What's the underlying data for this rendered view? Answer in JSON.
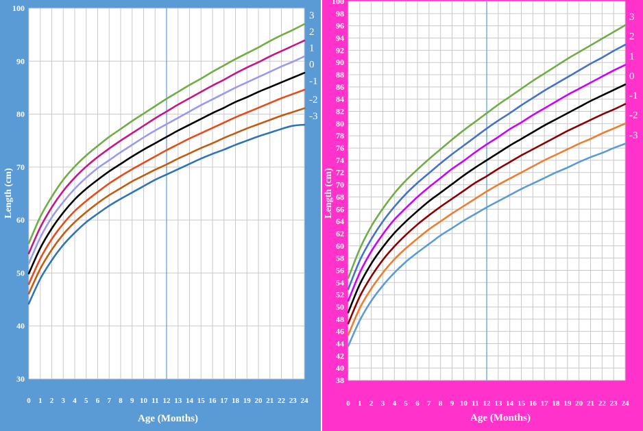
{
  "chart_data": [
    {
      "type": "line",
      "panel": "left",
      "background_color": "#5b9bd5",
      "xlabel": "Age (Months)",
      "ylabel": "Length (cm)",
      "xlim": [
        0,
        24
      ],
      "ylim": [
        30,
        100
      ],
      "x_ticks": [
        0,
        1,
        2,
        3,
        4,
        5,
        6,
        7,
        8,
        9,
        10,
        11,
        12,
        13,
        14,
        15,
        16,
        17,
        18,
        19,
        20,
        21,
        22,
        23,
        24
      ],
      "y_ticks": [
        30,
        40,
        50,
        60,
        70,
        80,
        90,
        100
      ],
      "y_tick_labels": [
        "30",
        "40",
        "50",
        "60",
        "70",
        "80",
        "90",
        "100"
      ],
      "grid": true,
      "reference_line_x": 12,
      "reference_line_color": "#5b9bd5",
      "x": [
        0,
        1,
        2,
        3,
        4,
        5,
        6,
        7,
        8,
        9,
        10,
        11,
        12,
        13,
        14,
        15,
        16,
        17,
        18,
        19,
        20,
        21,
        22,
        23,
        24
      ],
      "series": [
        {
          "name": "3",
          "color": "#70ad47",
          "values": [
            55.6,
            60.6,
            64.4,
            67.6,
            70.1,
            72.2,
            74.0,
            75.7,
            77.2,
            78.7,
            80.1,
            81.5,
            82.9,
            84.2,
            85.5,
            86.7,
            88.0,
            89.2,
            90.4,
            91.5,
            92.6,
            93.8,
            94.9,
            95.9,
            97.0
          ]
        },
        {
          "name": "2",
          "color": "#c71585",
          "values": [
            53.7,
            58.6,
            62.4,
            65.5,
            68.0,
            70.1,
            71.9,
            73.5,
            75.0,
            76.4,
            77.8,
            79.2,
            80.5,
            81.8,
            83.0,
            84.2,
            85.4,
            86.5,
            87.7,
            88.8,
            89.8,
            90.9,
            91.9,
            92.9,
            93.9
          ]
        },
        {
          "name": "1",
          "color": "#9999ee",
          "values": [
            51.8,
            56.7,
            60.5,
            63.4,
            65.9,
            68.0,
            69.8,
            71.3,
            72.8,
            74.2,
            75.6,
            76.9,
            78.1,
            79.3,
            80.5,
            81.7,
            82.8,
            83.9,
            85.0,
            86.0,
            87.0,
            88.0,
            89.0,
            89.9,
            90.9
          ]
        },
        {
          "name": "0",
          "color": "#000000",
          "values": [
            49.9,
            54.7,
            58.4,
            61.4,
            63.9,
            65.9,
            67.6,
            69.2,
            70.6,
            72.0,
            73.3,
            74.5,
            75.7,
            76.9,
            78.0,
            79.1,
            80.2,
            81.2,
            82.3,
            83.2,
            84.2,
            85.1,
            86.0,
            86.9,
            87.8
          ]
        },
        {
          "name": "-1",
          "color": "#e84a1a",
          "values": [
            47.9,
            52.7,
            56.4,
            59.3,
            61.7,
            63.6,
            65.3,
            66.9,
            68.3,
            69.6,
            70.8,
            72.0,
            73.2,
            74.3,
            75.4,
            76.4,
            77.4,
            78.4,
            79.4,
            80.3,
            81.2,
            82.1,
            83.0,
            83.8,
            84.6
          ]
        },
        {
          "name": "-2",
          "color": "#c55a11",
          "values": [
            46.1,
            50.8,
            54.4,
            57.3,
            59.6,
            61.5,
            63.2,
            64.7,
            66.0,
            67.3,
            68.4,
            69.5,
            70.5,
            71.6,
            72.6,
            73.6,
            74.5,
            75.5,
            76.4,
            77.3,
            78.1,
            78.9,
            79.7,
            80.4,
            81.1
          ]
        },
        {
          "name": "-3",
          "color": "#2e75b6",
          "values": [
            44.2,
            48.9,
            52.4,
            55.3,
            57.6,
            59.6,
            61.2,
            62.7,
            64.0,
            65.2,
            66.4,
            67.6,
            68.6,
            69.6,
            70.6,
            71.6,
            72.5,
            73.3,
            74.2,
            75.0,
            75.8,
            76.5,
            77.2,
            77.8,
            78.0
          ]
        }
      ]
    },
    {
      "type": "line",
      "panel": "right",
      "background_color": "#ff33cc",
      "xlabel": "Age (Months)",
      "ylabel": "Length (cm)",
      "xlim": [
        0,
        24
      ],
      "ylim": [
        38,
        100
      ],
      "x_ticks": [
        0,
        1,
        2,
        3,
        4,
        5,
        6,
        7,
        8,
        9,
        10,
        11,
        12,
        13,
        14,
        15,
        16,
        17,
        18,
        19,
        20,
        21,
        22,
        23,
        24
      ],
      "y_ticks": [
        38,
        40,
        42,
        44,
        46,
        48,
        50,
        52,
        54,
        56,
        58,
        60,
        62,
        64,
        66,
        68,
        70,
        72,
        74,
        76,
        78,
        80,
        82,
        84,
        86,
        88,
        90,
        92,
        94,
        96,
        98,
        100
      ],
      "y_tick_labels": [
        "38",
        "40",
        "42",
        "44",
        "46",
        "48",
        "50",
        "52",
        "54",
        "56",
        "58",
        "60",
        "62",
        "64",
        "66",
        "68",
        "70",
        "72",
        "74",
        "76",
        "78",
        "80",
        "82",
        "84",
        "86",
        "88",
        "90",
        "92",
        "94",
        "96",
        "98",
        "100"
      ],
      "grid": true,
      "reference_line_x": 12,
      "reference_line_color": "#5b9bd5",
      "x": [
        0,
        1,
        2,
        3,
        4,
        5,
        6,
        7,
        8,
        9,
        10,
        11,
        12,
        13,
        14,
        15,
        16,
        17,
        18,
        19,
        20,
        21,
        22,
        23,
        24
      ],
      "series": [
        {
          "name": "3",
          "color": "#70ad47",
          "values": [
            54.7,
            59.5,
            63.2,
            66.1,
            68.6,
            70.7,
            72.5,
            74.2,
            75.8,
            77.4,
            78.9,
            80.3,
            81.7,
            83.1,
            84.4,
            85.7,
            87.0,
            88.2,
            89.4,
            90.6,
            91.7,
            92.8,
            93.9,
            95.0,
            96.1
          ]
        },
        {
          "name": "2",
          "color": "#4472c4",
          "values": [
            52.9,
            57.6,
            61.1,
            64.0,
            66.4,
            68.5,
            70.3,
            71.9,
            73.5,
            75.0,
            76.4,
            77.8,
            79.2,
            80.5,
            81.7,
            83.0,
            84.2,
            85.4,
            86.5,
            87.6,
            88.7,
            89.8,
            90.8,
            91.9,
            92.9
          ]
        },
        {
          "name": "1",
          "color": "#cc00ff",
          "values": [
            51.0,
            55.6,
            59.1,
            61.9,
            64.3,
            66.2,
            68.0,
            69.6,
            71.1,
            72.6,
            73.9,
            75.3,
            76.6,
            77.8,
            79.1,
            80.2,
            81.4,
            82.5,
            83.6,
            84.7,
            85.7,
            86.7,
            87.7,
            88.7,
            89.6
          ]
        },
        {
          "name": "0",
          "color": "#000000",
          "values": [
            49.1,
            53.7,
            57.1,
            59.8,
            62.1,
            64.0,
            65.7,
            67.3,
            68.7,
            70.1,
            71.5,
            72.8,
            74.0,
            75.2,
            76.4,
            77.5,
            78.6,
            79.7,
            80.7,
            81.7,
            82.7,
            83.7,
            84.6,
            85.5,
            86.4
          ]
        },
        {
          "name": "-1",
          "color": "#8b0000",
          "values": [
            47.3,
            51.7,
            55.0,
            57.7,
            59.9,
            61.8,
            63.5,
            65.0,
            66.4,
            67.7,
            69.0,
            70.3,
            71.4,
            72.6,
            73.7,
            74.8,
            75.8,
            76.8,
            77.8,
            78.8,
            79.7,
            80.6,
            81.5,
            82.3,
            83.2
          ]
        },
        {
          "name": "-2",
          "color": "#ed7d31",
          "values": [
            45.4,
            49.8,
            53.0,
            55.6,
            57.8,
            59.6,
            61.2,
            62.7,
            64.0,
            65.3,
            66.5,
            67.7,
            68.9,
            70.0,
            71.0,
            72.0,
            73.0,
            74.0,
            74.9,
            75.8,
            76.7,
            77.5,
            78.4,
            79.2,
            80.0
          ]
        },
        {
          "name": "-3",
          "color": "#5b9bd5",
          "values": [
            43.6,
            47.8,
            51.0,
            53.5,
            55.6,
            57.4,
            58.9,
            60.3,
            61.7,
            62.9,
            64.1,
            65.2,
            66.3,
            67.3,
            68.3,
            69.3,
            70.2,
            71.1,
            72.0,
            72.8,
            73.7,
            74.5,
            75.2,
            76.0,
            76.7
          ]
        }
      ]
    }
  ]
}
